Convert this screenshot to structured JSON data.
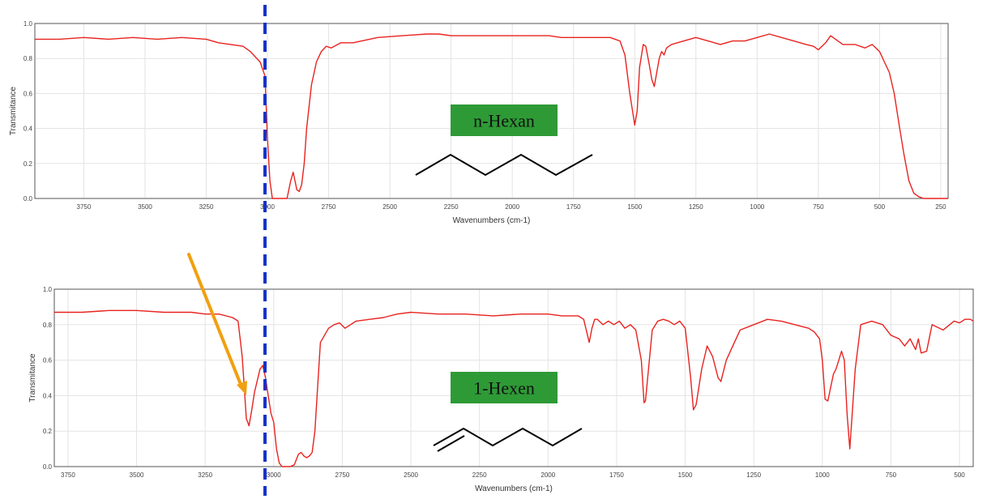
{
  "chart_data": [
    {
      "type": "line",
      "xlabel": "Wavenumbers (cm-1)",
      "ylabel": "Transmitance",
      "xlim": [
        3950,
        220
      ],
      "ylim": [
        0.0,
        1.0
      ],
      "x_ticks": [
        3750,
        3500,
        3250,
        3000,
        2750,
        2500,
        2250,
        2000,
        1750,
        1500,
        1250,
        1000,
        750,
        500,
        250
      ],
      "y_ticks": [
        0.0,
        0.2,
        0.4,
        0.6,
        0.8,
        1.0
      ],
      "grid": true,
      "label": "n-Hexan",
      "line_color": "#e8231f",
      "label_bg_color": "#2e9a36",
      "series": [
        {
          "x": [
            3950,
            3850,
            3750,
            3650,
            3550,
            3450,
            3350,
            3250,
            3200,
            3150,
            3100,
            3070,
            3050,
            3030,
            3010,
            3000,
            2990,
            2980,
            2970,
            2960,
            2940,
            2920,
            2905,
            2895,
            2880,
            2870,
            2860,
            2850,
            2840,
            2820,
            2800,
            2780,
            2760,
            2740,
            2700,
            2650,
            2550,
            2450,
            2350,
            2300,
            2250,
            2150,
            2050,
            1950,
            1900,
            1850,
            1800,
            1700,
            1600,
            1560,
            1540,
            1520,
            1500,
            1490,
            1480,
            1465,
            1455,
            1440,
            1430,
            1420,
            1400,
            1390,
            1380,
            1370,
            1350,
            1300,
            1250,
            1200,
            1150,
            1100,
            1050,
            1000,
            950,
            900,
            850,
            800,
            770,
            750,
            720,
            700,
            650,
            600,
            560,
            530,
            500,
            480,
            460,
            440,
            420,
            400,
            380,
            360,
            340,
            320,
            300,
            280,
            260,
            240,
            220
          ],
          "y": [
            0.91,
            0.91,
            0.92,
            0.91,
            0.92,
            0.91,
            0.92,
            0.91,
            0.89,
            0.88,
            0.87,
            0.84,
            0.81,
            0.78,
            0.7,
            0.35,
            0.1,
            0.0,
            0.0,
            0.0,
            0.0,
            0.0,
            0.1,
            0.15,
            0.05,
            0.04,
            0.08,
            0.2,
            0.4,
            0.65,
            0.78,
            0.84,
            0.87,
            0.86,
            0.89,
            0.89,
            0.92,
            0.93,
            0.94,
            0.94,
            0.93,
            0.93,
            0.93,
            0.93,
            0.93,
            0.93,
            0.92,
            0.92,
            0.92,
            0.9,
            0.82,
            0.6,
            0.42,
            0.5,
            0.75,
            0.88,
            0.87,
            0.76,
            0.68,
            0.64,
            0.8,
            0.84,
            0.82,
            0.86,
            0.88,
            0.9,
            0.92,
            0.9,
            0.88,
            0.9,
            0.9,
            0.92,
            0.94,
            0.92,
            0.9,
            0.88,
            0.87,
            0.85,
            0.89,
            0.93,
            0.88,
            0.88,
            0.86,
            0.88,
            0.84,
            0.78,
            0.72,
            0.6,
            0.42,
            0.25,
            0.1,
            0.03,
            0.01,
            0.0,
            0.0,
            0.0,
            0.0,
            0.0,
            0.0
          ]
        }
      ]
    },
    {
      "type": "line",
      "xlabel": "Wavenumbers (cm-1)",
      "ylabel": "Transmitance",
      "xlim": [
        3800,
        450
      ],
      "ylim": [
        0.0,
        1.0
      ],
      "x_ticks": [
        3750,
        3500,
        3250,
        3000,
        2750,
        2500,
        2250,
        2000,
        1750,
        1500,
        1250,
        1000,
        750,
        500
      ],
      "y_ticks": [
        0.0,
        0.2,
        0.4,
        0.6,
        0.8,
        1.0
      ],
      "grid": true,
      "label": "1-Hexen",
      "line_color": "#e8231f",
      "label_bg_color": "#2e9a36",
      "series": [
        {
          "x": [
            3800,
            3700,
            3600,
            3500,
            3400,
            3300,
            3250,
            3200,
            3150,
            3130,
            3115,
            3100,
            3090,
            3080,
            3070,
            3050,
            3040,
            3030,
            3020,
            3010,
            3000,
            2990,
            2980,
            2970,
            2960,
            2950,
            2940,
            2925,
            2910,
            2900,
            2890,
            2880,
            2870,
            2860,
            2850,
            2840,
            2830,
            2800,
            2780,
            2760,
            2740,
            2700,
            2650,
            2600,
            2550,
            2500,
            2400,
            2300,
            2200,
            2100,
            2000,
            1950,
            1920,
            1890,
            1870,
            1850,
            1840,
            1830,
            1820,
            1800,
            1780,
            1760,
            1740,
            1720,
            1700,
            1680,
            1660,
            1650,
            1645,
            1640,
            1620,
            1600,
            1580,
            1560,
            1540,
            1520,
            1500,
            1480,
            1470,
            1460,
            1440,
            1420,
            1400,
            1380,
            1370,
            1350,
            1300,
            1250,
            1200,
            1150,
            1100,
            1050,
            1030,
            1010,
            1000,
            990,
            980,
            960,
            950,
            940,
            930,
            920,
            910,
            900,
            880,
            860,
            820,
            780,
            750,
            720,
            700,
            680,
            660,
            650,
            640,
            620,
            600,
            560,
            520,
            500,
            480,
            460,
            450
          ],
          "y": [
            0.87,
            0.87,
            0.88,
            0.88,
            0.87,
            0.87,
            0.86,
            0.86,
            0.84,
            0.82,
            0.62,
            0.27,
            0.23,
            0.32,
            0.42,
            0.55,
            0.57,
            0.5,
            0.4,
            0.3,
            0.25,
            0.1,
            0.02,
            0.0,
            0.0,
            0.0,
            0.0,
            0.01,
            0.07,
            0.08,
            0.06,
            0.05,
            0.06,
            0.08,
            0.2,
            0.45,
            0.7,
            0.78,
            0.8,
            0.81,
            0.78,
            0.82,
            0.83,
            0.84,
            0.86,
            0.87,
            0.86,
            0.86,
            0.85,
            0.86,
            0.86,
            0.85,
            0.85,
            0.85,
            0.83,
            0.7,
            0.78,
            0.83,
            0.83,
            0.8,
            0.82,
            0.8,
            0.82,
            0.78,
            0.8,
            0.77,
            0.6,
            0.36,
            0.37,
            0.45,
            0.77,
            0.82,
            0.83,
            0.82,
            0.8,
            0.82,
            0.78,
            0.5,
            0.32,
            0.35,
            0.55,
            0.68,
            0.62,
            0.5,
            0.48,
            0.6,
            0.77,
            0.8,
            0.83,
            0.82,
            0.8,
            0.78,
            0.76,
            0.72,
            0.6,
            0.38,
            0.37,
            0.52,
            0.55,
            0.6,
            0.65,
            0.6,
            0.3,
            0.1,
            0.55,
            0.8,
            0.82,
            0.8,
            0.74,
            0.72,
            0.68,
            0.72,
            0.66,
            0.72,
            0.64,
            0.65,
            0.8,
            0.77,
            0.82,
            0.81,
            0.83,
            0.83,
            0.82
          ]
        }
      ]
    }
  ],
  "overlay": {
    "dashed_line_color": "#1432c8",
    "dashed_line_wavenumber": 3010,
    "arrow_color": "#f0a010"
  }
}
